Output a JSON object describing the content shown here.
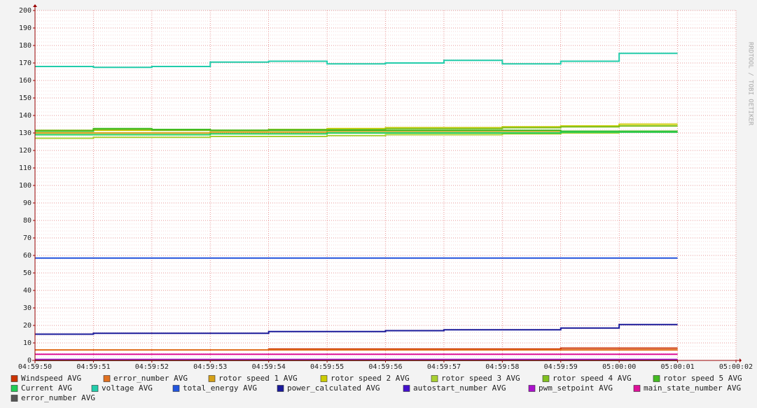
{
  "chart_data": {
    "type": "line",
    "step": "post",
    "watermark": "RRDTOOL / TOBI OETIKER",
    "x": [
      "04:59:50",
      "04:59:51",
      "04:59:52",
      "04:59:53",
      "04:59:54",
      "04:59:55",
      "04:59:56",
      "04:59:57",
      "04:59:58",
      "04:59:59",
      "05:00:00",
      "05:00:01"
    ],
    "xlim": [
      "04:59:50",
      "05:00:02"
    ],
    "xticks": [
      "04:59:50",
      "04:59:51",
      "04:59:52",
      "04:59:53",
      "04:59:54",
      "04:59:55",
      "04:59:56",
      "04:59:57",
      "04:59:58",
      "04:59:59",
      "05:00:00",
      "05:00:01",
      "05:00:02"
    ],
    "ylim": [
      0,
      200
    ],
    "yticks": [
      0,
      10,
      20,
      30,
      40,
      50,
      60,
      70,
      80,
      90,
      100,
      110,
      120,
      130,
      140,
      150,
      160,
      170,
      180,
      190,
      200
    ],
    "grid": true,
    "series": [
      {
        "name": "Windspeed AVG",
        "color": "#cc3300",
        "values": [
          6,
          6,
          6,
          6,
          6.5,
          6.5,
          6.5,
          6.5,
          6.5,
          7,
          7,
          7
        ]
      },
      {
        "name": "error_number AVG",
        "color": "#e07020",
        "values": [
          6,
          6,
          6,
          6,
          6,
          6,
          6,
          6,
          6,
          6,
          6,
          6
        ]
      },
      {
        "name": "rotor speed 1 AVG",
        "color": "#d4a017",
        "values": [
          130,
          130,
          130,
          130.5,
          130.5,
          131,
          131,
          131,
          131,
          131,
          131,
          131
        ]
      },
      {
        "name": "rotor speed 2 AVG",
        "color": "#cccc00",
        "values": [
          131,
          131.5,
          131.5,
          131.5,
          132,
          132.5,
          133,
          133,
          133.5,
          134,
          135,
          135
        ]
      },
      {
        "name": "rotor speed 3 AVG",
        "color": "#a8d030",
        "values": [
          127,
          127.5,
          127.5,
          128,
          128,
          128.5,
          129,
          129,
          129.5,
          130,
          130.5,
          130.5
        ]
      },
      {
        "name": "rotor speed 4 AVG",
        "color": "#80c020",
        "values": [
          131.5,
          132,
          131.5,
          131.5,
          132,
          132,
          132.5,
          132.5,
          133,
          133.5,
          134,
          134
        ]
      },
      {
        "name": "rotor speed 5 AVG",
        "color": "#44bb22",
        "values": [
          131,
          132.5,
          132,
          131.5,
          131.5,
          131.5,
          131.5,
          131.5,
          131.5,
          131,
          131,
          131
        ]
      },
      {
        "name": "Current AVG",
        "color": "#22cc55",
        "values": [
          129,
          129,
          129,
          129.5,
          129.5,
          130,
          130,
          130,
          130,
          130.5,
          130.5,
          130.5
        ]
      },
      {
        "name": "voltage AVG",
        "color": "#22ccaa",
        "values": [
          168,
          167.5,
          168,
          170.5,
          171,
          169.5,
          170,
          171.5,
          169.5,
          171,
          175.5,
          175.5
        ]
      },
      {
        "name": "total_energy AVG",
        "color": "#2255dd",
        "values": [
          58.5,
          58.5,
          58.5,
          58.5,
          58.5,
          58.5,
          58.5,
          58.5,
          58.5,
          58.5,
          58.5,
          58.5
        ]
      },
      {
        "name": "power_calculated AVG",
        "color": "#1a1a9a",
        "values": [
          15,
          15.5,
          15.5,
          15.5,
          16.5,
          16.5,
          17,
          17.5,
          17.5,
          18.5,
          20.5,
          20.5
        ]
      },
      {
        "name": "autostart_number AVG",
        "color": "#4411cc",
        "values": [
          0.5,
          0.5,
          0.5,
          0.5,
          0.5,
          0.5,
          0.5,
          0.5,
          0.5,
          0.5,
          0.5,
          0.5
        ]
      },
      {
        "name": "pwm_setpoint AVG",
        "color": "#aa11cc",
        "values": [
          0.5,
          0.5,
          0.5,
          0.5,
          0.5,
          0.5,
          0.5,
          0.5,
          0.5,
          0.5,
          0.5,
          0.5
        ]
      },
      {
        "name": "main_state_number AVG",
        "color": "#dd1199",
        "values": [
          3.5,
          3.5,
          3.5,
          3.5,
          3.5,
          3.5,
          3.5,
          3.5,
          3.5,
          3.5,
          3.5,
          3.5
        ]
      },
      {
        "name": "error_number AVG",
        "color": "#555555",
        "values": [
          0,
          0,
          0,
          0,
          0,
          0,
          0,
          0,
          0,
          0,
          0,
          0
        ]
      }
    ]
  }
}
